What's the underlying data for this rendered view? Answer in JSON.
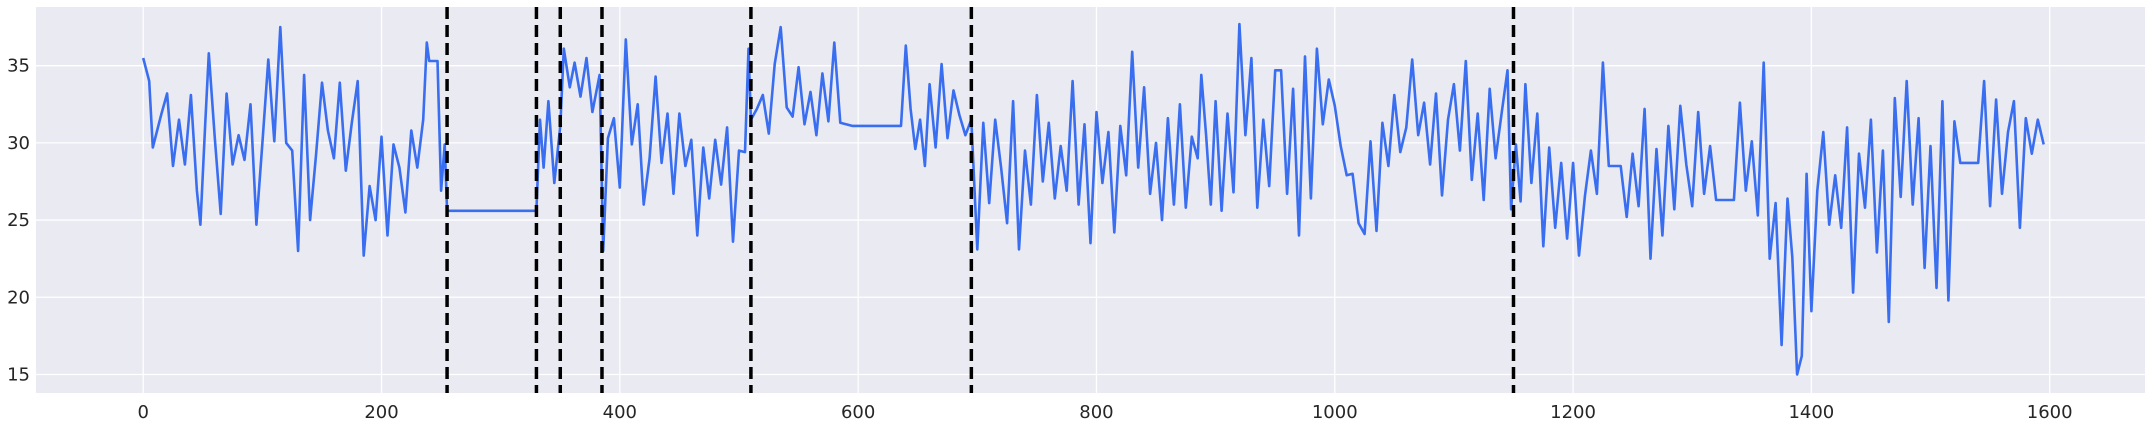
{
  "chart_data": {
    "type": "line",
    "title": "",
    "xlabel": "",
    "ylabel": "",
    "xlim": [
      -90,
      1680
    ],
    "ylim": [
      13.8,
      38.8
    ],
    "xticks": [
      0,
      200,
      400,
      600,
      800,
      1000,
      1200,
      1400,
      1600
    ],
    "yticks": [
      15,
      20,
      25,
      30,
      35
    ],
    "grid": true,
    "style": "seaborn-darkgrid",
    "colors": {
      "background": "#eaeaf2",
      "grid": "#ffffff",
      "line": "#3a6ef0",
      "vlines": "#000000"
    },
    "series": [
      {
        "values_description": "noisy time series, 1600 samples",
        "points": [
          [
            0,
            35.5
          ],
          [
            5,
            34.0
          ],
          [
            8,
            29.7
          ],
          [
            15,
            31.8
          ],
          [
            20,
            33.2
          ],
          [
            25,
            28.5
          ],
          [
            30,
            31.5
          ],
          [
            35,
            28.6
          ],
          [
            40,
            33.1
          ],
          [
            45,
            26.9
          ],
          [
            48,
            24.7
          ],
          [
            52,
            31.2
          ],
          [
            55,
            35.8
          ],
          [
            60,
            30.4
          ],
          [
            65,
            25.4
          ],
          [
            70,
            33.2
          ],
          [
            75,
            28.6
          ],
          [
            80,
            30.5
          ],
          [
            85,
            28.9
          ],
          [
            90,
            32.5
          ],
          [
            95,
            24.7
          ],
          [
            100,
            30.0
          ],
          [
            105,
            35.4
          ],
          [
            110,
            30.1
          ],
          [
            115,
            37.5
          ],
          [
            120,
            30.0
          ],
          [
            125,
            29.5
          ],
          [
            130,
            23.0
          ],
          [
            135,
            34.4
          ],
          [
            140,
            25.0
          ],
          [
            145,
            29.2
          ],
          [
            150,
            33.9
          ],
          [
            155,
            30.8
          ],
          [
            160,
            29.0
          ],
          [
            165,
            33.9
          ],
          [
            170,
            28.2
          ],
          [
            175,
            31.3
          ],
          [
            180,
            34.0
          ],
          [
            185,
            22.7
          ],
          [
            190,
            27.2
          ],
          [
            195,
            25.0
          ],
          [
            200,
            30.4
          ],
          [
            205,
            24.0
          ],
          [
            210,
            29.9
          ],
          [
            215,
            28.4
          ],
          [
            220,
            25.5
          ],
          [
            225,
            30.8
          ],
          [
            230,
            28.4
          ],
          [
            235,
            31.5
          ],
          [
            238,
            36.5
          ],
          [
            240,
            35.3
          ],
          [
            247,
            35.3
          ],
          [
            250,
            26.9
          ],
          [
            253,
            29.9
          ],
          [
            255,
            25.6
          ],
          [
            330,
            25.6
          ],
          [
            333,
            31.5
          ],
          [
            336,
            28.4
          ],
          [
            340,
            32.7
          ],
          [
            345,
            27.4
          ],
          [
            350,
            31.1
          ],
          [
            353,
            36.1
          ],
          [
            358,
            33.6
          ],
          [
            362,
            35.2
          ],
          [
            367,
            33.0
          ],
          [
            372,
            35.5
          ],
          [
            377,
            32.0
          ],
          [
            383,
            34.4
          ],
          [
            386,
            23.0
          ],
          [
            390,
            30.3
          ],
          [
            395,
            31.6
          ],
          [
            400,
            27.1
          ],
          [
            405,
            36.7
          ],
          [
            410,
            29.9
          ],
          [
            415,
            32.5
          ],
          [
            420,
            26.0
          ],
          [
            425,
            29.0
          ],
          [
            430,
            34.3
          ],
          [
            435,
            28.7
          ],
          [
            440,
            31.9
          ],
          [
            445,
            26.7
          ],
          [
            450,
            31.9
          ],
          [
            455,
            28.5
          ],
          [
            460,
            30.2
          ],
          [
            465,
            24.0
          ],
          [
            470,
            29.7
          ],
          [
            475,
            26.4
          ],
          [
            480,
            30.2
          ],
          [
            485,
            27.3
          ],
          [
            490,
            31.0
          ],
          [
            495,
            23.6
          ],
          [
            500,
            29.5
          ],
          [
            505,
            29.4
          ],
          [
            508,
            36.1
          ],
          [
            510,
            31.5
          ],
          [
            515,
            32.2
          ],
          [
            520,
            33.1
          ],
          [
            525,
            30.6
          ],
          [
            530,
            35.1
          ],
          [
            535,
            37.5
          ],
          [
            540,
            32.3
          ],
          [
            545,
            31.7
          ],
          [
            550,
            34.9
          ],
          [
            555,
            31.2
          ],
          [
            560,
            33.3
          ],
          [
            565,
            30.5
          ],
          [
            570,
            34.5
          ],
          [
            575,
            31.4
          ],
          [
            580,
            36.5
          ],
          [
            585,
            31.3
          ],
          [
            595,
            31.1
          ],
          [
            636,
            31.1
          ],
          [
            640,
            36.3
          ],
          [
            644,
            32.2
          ],
          [
            648,
            29.6
          ],
          [
            652,
            31.5
          ],
          [
            656,
            28.5
          ],
          [
            660,
            33.8
          ],
          [
            665,
            29.7
          ],
          [
            670,
            35.1
          ],
          [
            675,
            30.3
          ],
          [
            680,
            33.4
          ],
          [
            685,
            31.8
          ],
          [
            690,
            30.5
          ],
          [
            695,
            31.5
          ],
          [
            700,
            23.1
          ],
          [
            705,
            31.3
          ],
          [
            710,
            26.1
          ],
          [
            715,
            31.5
          ],
          [
            720,
            28.4
          ],
          [
            725,
            24.8
          ],
          [
            730,
            32.7
          ],
          [
            735,
            23.1
          ],
          [
            740,
            29.5
          ],
          [
            745,
            26.0
          ],
          [
            750,
            33.1
          ],
          [
            755,
            27.5
          ],
          [
            760,
            31.3
          ],
          [
            765,
            26.4
          ],
          [
            770,
            29.8
          ],
          [
            775,
            26.9
          ],
          [
            780,
            34.0
          ],
          [
            785,
            26.0
          ],
          [
            790,
            31.2
          ],
          [
            795,
            23.5
          ],
          [
            800,
            32.0
          ],
          [
            805,
            27.4
          ],
          [
            810,
            30.7
          ],
          [
            815,
            24.2
          ],
          [
            820,
            31.1
          ],
          [
            825,
            27.9
          ],
          [
            830,
            35.9
          ],
          [
            835,
            28.4
          ],
          [
            840,
            33.6
          ],
          [
            845,
            26.7
          ],
          [
            850,
            30.0
          ],
          [
            855,
            25.0
          ],
          [
            860,
            31.6
          ],
          [
            865,
            26.0
          ],
          [
            870,
            32.5
          ],
          [
            875,
            25.8
          ],
          [
            880,
            30.4
          ],
          [
            885,
            29.0
          ],
          [
            888,
            34.4
          ],
          [
            892,
            30.5
          ],
          [
            896,
            26.0
          ],
          [
            900,
            32.7
          ],
          [
            905,
            25.6
          ],
          [
            910,
            31.9
          ],
          [
            915,
            26.8
          ],
          [
            920,
            37.7
          ],
          [
            925,
            30.5
          ],
          [
            930,
            35.5
          ],
          [
            935,
            25.8
          ],
          [
            940,
            31.5
          ],
          [
            945,
            27.2
          ],
          [
            950,
            34.7
          ],
          [
            955,
            34.7
          ],
          [
            960,
            26.7
          ],
          [
            965,
            33.5
          ],
          [
            970,
            24.0
          ],
          [
            975,
            35.6
          ],
          [
            980,
            26.4
          ],
          [
            985,
            36.1
          ],
          [
            990,
            31.2
          ],
          [
            995,
            34.1
          ],
          [
            1000,
            32.4
          ],
          [
            1005,
            29.8
          ],
          [
            1010,
            27.9
          ],
          [
            1015,
            28.0
          ],
          [
            1020,
            24.8
          ],
          [
            1025,
            24.1
          ],
          [
            1030,
            30.1
          ],
          [
            1035,
            24.3
          ],
          [
            1040,
            31.3
          ],
          [
            1045,
            28.5
          ],
          [
            1050,
            33.1
          ],
          [
            1055,
            29.4
          ],
          [
            1060,
            31.0
          ],
          [
            1065,
            35.4
          ],
          [
            1070,
            30.5
          ],
          [
            1075,
            32.6
          ],
          [
            1080,
            28.6
          ],
          [
            1085,
            33.2
          ],
          [
            1090,
            26.6
          ],
          [
            1095,
            31.5
          ],
          [
            1100,
            33.8
          ],
          [
            1105,
            29.5
          ],
          [
            1110,
            35.3
          ],
          [
            1115,
            27.6
          ],
          [
            1120,
            31.9
          ],
          [
            1125,
            26.3
          ],
          [
            1130,
            33.5
          ],
          [
            1135,
            29.0
          ],
          [
            1140,
            31.9
          ],
          [
            1145,
            34.7
          ],
          [
            1148,
            25.7
          ],
          [
            1152,
            29.9
          ],
          [
            1156,
            26.2
          ],
          [
            1160,
            33.8
          ],
          [
            1165,
            27.4
          ],
          [
            1170,
            31.9
          ],
          [
            1175,
            23.3
          ],
          [
            1180,
            29.7
          ],
          [
            1185,
            24.5
          ],
          [
            1190,
            28.7
          ],
          [
            1195,
            23.8
          ],
          [
            1200,
            28.7
          ],
          [
            1205,
            22.7
          ],
          [
            1210,
            26.6
          ],
          [
            1215,
            29.5
          ],
          [
            1220,
            26.7
          ],
          [
            1225,
            35.2
          ],
          [
            1230,
            28.5
          ],
          [
            1240,
            28.5
          ],
          [
            1245,
            25.2
          ],
          [
            1250,
            29.3
          ],
          [
            1255,
            25.9
          ],
          [
            1260,
            32.2
          ],
          [
            1265,
            22.5
          ],
          [
            1270,
            29.6
          ],
          [
            1275,
            24.0
          ],
          [
            1280,
            31.1
          ],
          [
            1285,
            25.7
          ],
          [
            1290,
            32.4
          ],
          [
            1295,
            28.6
          ],
          [
            1300,
            25.9
          ],
          [
            1305,
            32.0
          ],
          [
            1310,
            26.7
          ],
          [
            1315,
            29.8
          ],
          [
            1320,
            26.3
          ],
          [
            1335,
            26.3
          ],
          [
            1340,
            32.6
          ],
          [
            1345,
            26.9
          ],
          [
            1350,
            30.1
          ],
          [
            1355,
            25.3
          ],
          [
            1360,
            35.2
          ],
          [
            1365,
            22.5
          ],
          [
            1370,
            26.1
          ],
          [
            1375,
            16.9
          ],
          [
            1380,
            26.4
          ],
          [
            1384,
            22.6
          ],
          [
            1388,
            15.0
          ],
          [
            1392,
            16.2
          ],
          [
            1396,
            28.0
          ],
          [
            1400,
            19.1
          ],
          [
            1405,
            26.9
          ],
          [
            1410,
            30.7
          ],
          [
            1415,
            24.7
          ],
          [
            1420,
            27.9
          ],
          [
            1425,
            24.5
          ],
          [
            1430,
            31.0
          ],
          [
            1435,
            20.3
          ],
          [
            1440,
            29.3
          ],
          [
            1445,
            25.8
          ],
          [
            1450,
            31.5
          ],
          [
            1455,
            22.9
          ],
          [
            1460,
            29.5
          ],
          [
            1465,
            18.4
          ],
          [
            1470,
            32.9
          ],
          [
            1475,
            26.5
          ],
          [
            1480,
            34.0
          ],
          [
            1485,
            26.0
          ],
          [
            1490,
            31.6
          ],
          [
            1495,
            21.9
          ],
          [
            1500,
            29.8
          ],
          [
            1505,
            20.6
          ],
          [
            1510,
            32.7
          ],
          [
            1515,
            19.8
          ],
          [
            1520,
            31.4
          ],
          [
            1525,
            28.7
          ],
          [
            1540,
            28.7
          ],
          [
            1545,
            34.0
          ],
          [
            1550,
            25.9
          ],
          [
            1555,
            32.8
          ],
          [
            1560,
            26.7
          ],
          [
            1565,
            30.7
          ],
          [
            1570,
            32.7
          ],
          [
            1575,
            24.5
          ],
          [
            1580,
            31.6
          ],
          [
            1585,
            29.3
          ],
          [
            1590,
            31.5
          ],
          [
            1595,
            29.9
          ]
        ]
      }
    ],
    "vlines": [
      255,
      330,
      350,
      385,
      510,
      695,
      1150
    ]
  }
}
